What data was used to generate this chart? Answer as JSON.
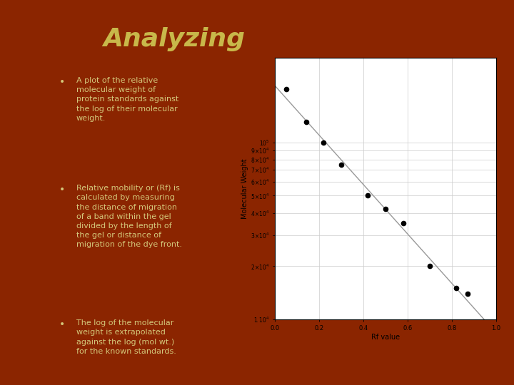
{
  "title": "Analyzing",
  "bullet1": "A plot of the relative\nmolecular weight of\nprotein standards against\nthe log of their molecular\nweight.",
  "bullet2": "Relative mobility or (Rf) is\ncalculated by measuring\nthe distance of migration\nof a band within the gel\ndivided by the length of\nthe gel or distance of\nmigration of the dye front.",
  "bullet3": "The log of the molecular\nweight is extrapolated\nagainst the log (mol wt.)\nfor the known standards.",
  "bg_color": "#8B2500",
  "text_color": "#D4C87A",
  "title_color": "#C8B84A",
  "rf_values": [
    0.05,
    0.14,
    0.22,
    0.3,
    0.42,
    0.5,
    0.58,
    0.7,
    0.82,
    0.87
  ],
  "mol_weights": [
    200000,
    130000,
    100000,
    75000,
    50000,
    42000,
    35000,
    20000,
    15000,
    14000
  ],
  "xlabel": "Rf value",
  "ylabel": "Molecular Weight",
  "xmin": 0.0,
  "xmax": 1.0,
  "ymin": 10000,
  "ymax": 300000,
  "xticks": [
    0.0,
    0.2,
    0.4,
    0.6,
    0.8,
    1.0
  ]
}
